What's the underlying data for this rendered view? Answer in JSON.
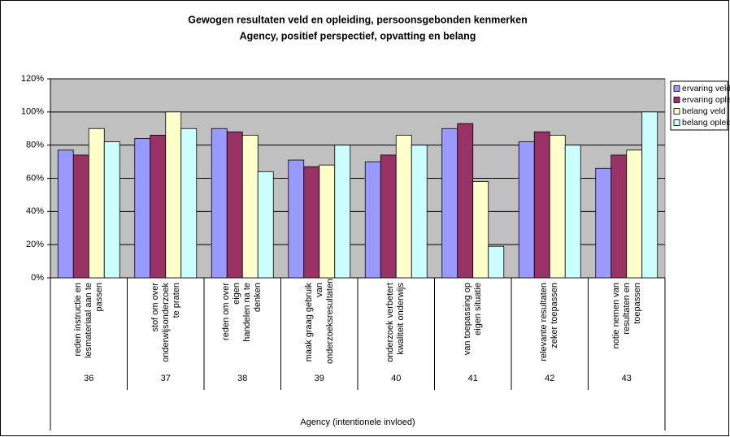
{
  "chart_data": {
    "type": "bar",
    "title": "Gewogen resultaten veld en opleiding, persoonsgebonden kenmerken",
    "subtitle": "Agency, positief  perspectief, opvatting en belang",
    "x_label": "Agency (intentionele invloed)",
    "categories": [
      "reden instructie en\nlesmateriaal aan te\npassen",
      "stof om over\nonderwijsonderzoek\nte praten",
      "reden om over eigen\nhandelen na te\ndenken",
      "maak graag gebruik\nvan\nonderzoeksresultaten",
      "onderzoek verbetert\nkwaliteit onderwijs",
      "van toepassing op\neigen situatie",
      "relevante resultaten\nzeker toepassen",
      "notie nemen van\nresultaten en\ntoepassen"
    ],
    "group_labels": [
      "36",
      "37",
      "38",
      "39",
      "40",
      "41",
      "42",
      "43"
    ],
    "series": [
      {
        "name": "ervaring veld",
        "color": "#9999ff",
        "values": [
          77,
          84,
          90,
          71,
          70,
          90,
          82,
          66
        ]
      },
      {
        "name": "ervaring opleiding",
        "color": "#993366",
        "values": [
          74,
          86,
          88,
          67,
          74,
          93,
          88,
          74
        ]
      },
      {
        "name": "belang veld",
        "color": "#ffffcc",
        "values": [
          90,
          100,
          86,
          68,
          86,
          58,
          86,
          77
        ]
      },
      {
        "name": "belang opleiding",
        "color": "#ccffff",
        "values": [
          82,
          90,
          64,
          80,
          80,
          19,
          80,
          100
        ]
      }
    ],
    "ylim": [
      0,
      120
    ],
    "yticks": [
      {
        "value": 0,
        "label": "0%"
      },
      {
        "value": 20,
        "label": "20%"
      },
      {
        "value": 40,
        "label": "40%"
      },
      {
        "value": 60,
        "label": "60%"
      },
      {
        "value": 80,
        "label": "80%"
      },
      {
        "value": 100,
        "label": "100%"
      },
      {
        "value": 120,
        "label": "120%"
      }
    ],
    "grid": true,
    "legend": "right",
    "plot_background": "#c0c0c0"
  }
}
